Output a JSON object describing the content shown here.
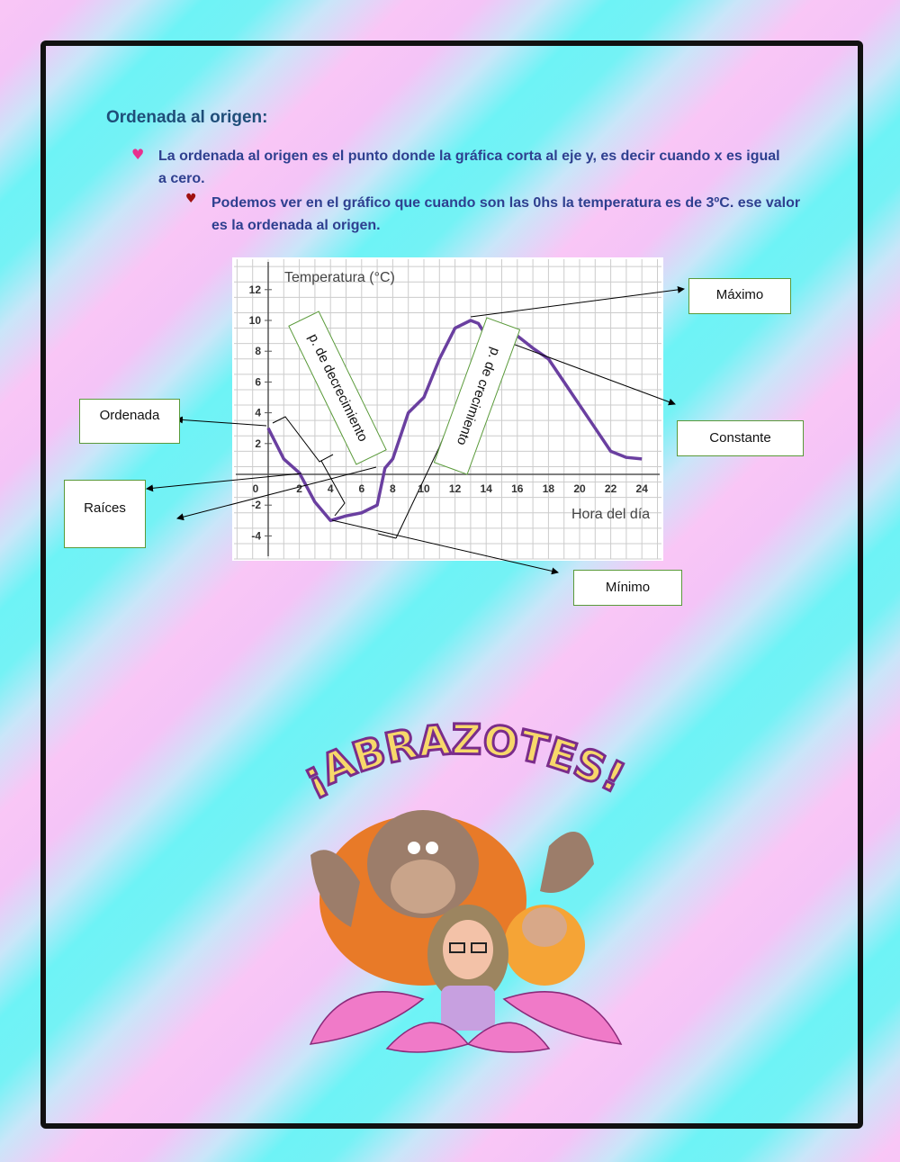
{
  "heading": "Ordenada al origen:",
  "bullets": [
    {
      "icon": "pink-heart-icon",
      "text": "La ordenada al origen es el punto donde la gráfica corta al eje y, es decir cuando x es igual a cero."
    },
    {
      "icon": "red-heart-icon",
      "text": "Podemos ver en el gráfico que cuando son las 0hs la temperatura es de 3ºC. ese valor es la ordenada al origen."
    }
  ],
  "chart_data": {
    "type": "line",
    "ylabel": "Temperatura (°C)",
    "xlabel": "Hora del día",
    "xlim": [
      -1,
      25
    ],
    "ylim": [
      -5,
      13
    ],
    "xticks": [
      0,
      2,
      4,
      6,
      8,
      10,
      12,
      14,
      16,
      18,
      20,
      22,
      24
    ],
    "yticks": [
      -4,
      -2,
      2,
      4,
      6,
      8,
      10,
      12
    ],
    "grid": true,
    "color": "#6a3fa0",
    "x": [
      0,
      1,
      2,
      3,
      4,
      5,
      6,
      7,
      7.5,
      8,
      9,
      10,
      11,
      12,
      13,
      13.5,
      14,
      15,
      16,
      17,
      18,
      19,
      20,
      21,
      22,
      23,
      24
    ],
    "y": [
      3,
      1,
      0.1,
      -1.8,
      -3,
      -2.7,
      -2.5,
      -2,
      0.4,
      1,
      4,
      5,
      7.5,
      9.5,
      10,
      9.8,
      9,
      9,
      9,
      8.2,
      7.5,
      6,
      4.5,
      3,
      1.5,
      1.1,
      1
    ]
  },
  "annotations": {
    "maximo": "Máximo",
    "constante": "Constante",
    "ordenada": "Ordenada",
    "raices": "Raíces",
    "minimo": "Mínimo",
    "decrecimiento": "p. de decrecimiento",
    "crecimiento": "p. de crecimiento"
  },
  "sticker": {
    "text": "¡ABRAZOTES!"
  }
}
